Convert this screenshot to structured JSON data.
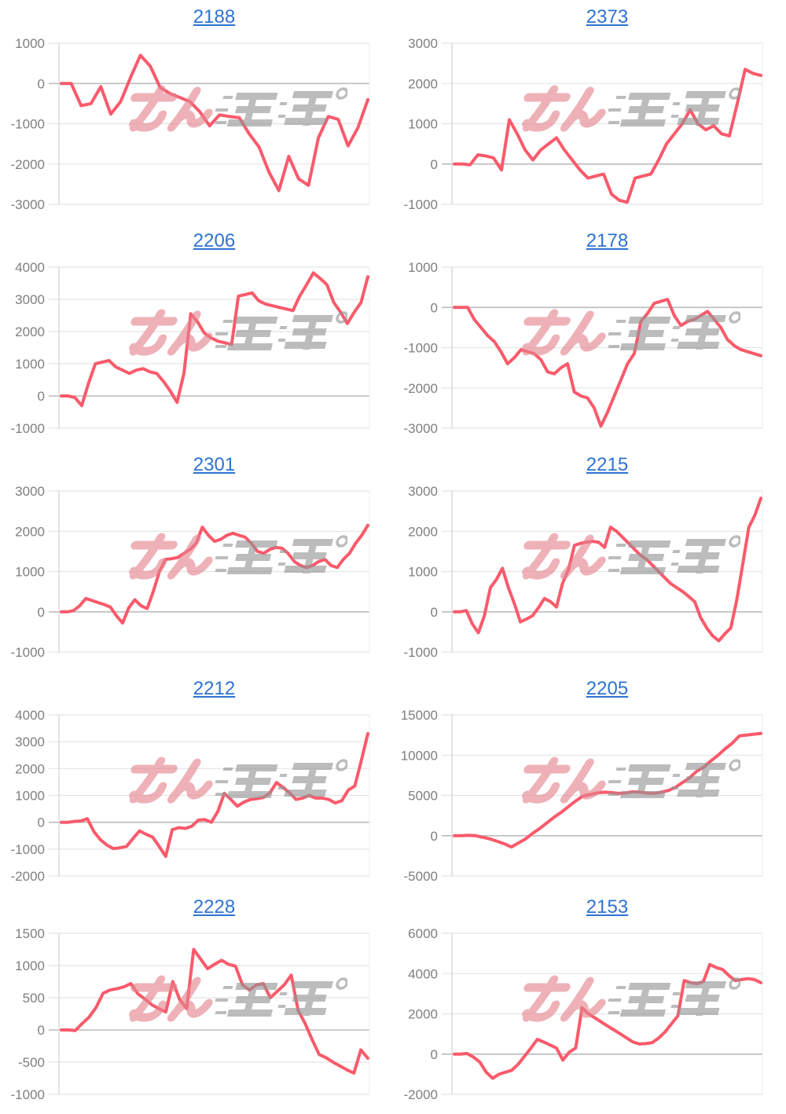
{
  "watermark": {
    "text": "みんかぶ",
    "pink_text": "みん",
    "gray_text": "かぶ",
    "pink_color": "#e4838d",
    "gray_color": "#949494"
  },
  "styles": {
    "line_color": "#fa5a6b",
    "title_color": "#2e73d2",
    "grid_color": "#e4e4e4",
    "zero_line_color": "#bcbcbc",
    "axis_color": "#d6d6d6",
    "right_edge_color": "#ececec",
    "tick_label_color": "#7f7f7f"
  },
  "chart_data": [
    {
      "type": "line",
      "title": "2188",
      "xlabel": "",
      "ylabel": "",
      "yticks": [
        1000,
        0,
        -1000,
        -2000,
        -3000
      ],
      "ylim": [
        -3000,
        1000
      ],
      "grid": true,
      "legend": "none",
      "values": [
        0,
        0,
        -550,
        -500,
        -80,
        -760,
        -450,
        150,
        700,
        430,
        -100,
        -250,
        -350,
        -450,
        -700,
        -1050,
        -780,
        -820,
        -850,
        -1250,
        -1580,
        -2200,
        -2660,
        -1810,
        -2370,
        -2530,
        -1350,
        -820,
        -890,
        -1550,
        -1100,
        -400
      ]
    },
    {
      "type": "line",
      "title": "2373",
      "xlabel": "",
      "ylabel": "",
      "yticks": [
        3000,
        2000,
        1000,
        0,
        -1000
      ],
      "ylim": [
        -1000,
        3000
      ],
      "grid": true,
      "legend": "none",
      "values": [
        0,
        0,
        -20,
        230,
        200,
        150,
        -150,
        1100,
        750,
        350,
        100,
        350,
        500,
        650,
        350,
        100,
        -150,
        -350,
        -300,
        -250,
        -750,
        -900,
        -950,
        -350,
        -300,
        -250,
        100,
        500,
        750,
        1000,
        1350,
        1000,
        850,
        950,
        750,
        700,
        1500,
        2350,
        2250,
        2200
      ]
    },
    {
      "type": "line",
      "title": "2206",
      "xlabel": "",
      "ylabel": "",
      "yticks": [
        4000,
        3000,
        2000,
        1000,
        0,
        -1000
      ],
      "ylim": [
        -1000,
        4000
      ],
      "grid": true,
      "legend": "none",
      "values": [
        0,
        0,
        -50,
        -300,
        400,
        1000,
        1050,
        1100,
        900,
        800,
        700,
        800,
        850,
        750,
        700,
        450,
        150,
        -200,
        700,
        2550,
        2300,
        1950,
        1800,
        1700,
        1650,
        1600,
        3100,
        3150,
        3200,
        2950,
        2850,
        2800,
        2750,
        2700,
        2650,
        3100,
        3450,
        3820,
        3650,
        3450,
        2900,
        2600,
        2250,
        2600,
        2900,
        3700
      ]
    },
    {
      "type": "line",
      "title": "2178",
      "xlabel": "",
      "ylabel": "",
      "yticks": [
        1000,
        0,
        -1000,
        -2000,
        -3000
      ],
      "ylim": [
        -3000,
        1000
      ],
      "grid": true,
      "legend": "none",
      "values": [
        0,
        0,
        0,
        -300,
        -500,
        -700,
        -850,
        -1100,
        -1400,
        -1250,
        -1050,
        -1100,
        -1150,
        -1300,
        -1600,
        -1650,
        -1500,
        -1400,
        -2100,
        -2200,
        -2250,
        -2500,
        -2950,
        -2600,
        -2200,
        -1800,
        -1400,
        -1150,
        -350,
        -150,
        100,
        150,
        200,
        -200,
        -450,
        -350,
        -300,
        -200,
        -100,
        -300,
        -500,
        -800,
        -950,
        -1050,
        -1100,
        -1150,
        -1200
      ]
    },
    {
      "type": "line",
      "title": "2301",
      "xlabel": "",
      "ylabel": "",
      "yticks": [
        3000,
        2000,
        1000,
        0,
        -1000
      ],
      "ylim": [
        -1000,
        3000
      ],
      "grid": true,
      "legend": "none",
      "values": [
        0,
        0,
        30,
        150,
        330,
        280,
        230,
        180,
        120,
        -100,
        -280,
        100,
        300,
        150,
        80,
        500,
        1000,
        1300,
        1320,
        1350,
        1450,
        1550,
        1700,
        2100,
        1900,
        1750,
        1800,
        1900,
        1950,
        1900,
        1850,
        1700,
        1500,
        1450,
        1550,
        1600,
        1580,
        1450,
        1250,
        1150,
        1100,
        1150,
        1250,
        1300,
        1150,
        1100,
        1300,
        1450,
        1700,
        1900,
        2150
      ]
    },
    {
      "type": "line",
      "title": "2215",
      "xlabel": "",
      "ylabel": "",
      "yticks": [
        3000,
        2000,
        1000,
        0,
        -1000
      ],
      "ylim": [
        -1000,
        3000
      ],
      "grid": true,
      "legend": "none",
      "values": [
        0,
        0,
        30,
        -300,
        -520,
        -100,
        600,
        800,
        1080,
        600,
        200,
        -250,
        -180,
        -100,
        100,
        330,
        250,
        120,
        700,
        1050,
        1650,
        1700,
        1730,
        1750,
        1730,
        1600,
        2100,
        2000,
        1850,
        1700,
        1550,
        1400,
        1300,
        1150,
        1000,
        850,
        700,
        600,
        500,
        380,
        250,
        -150,
        -400,
        -600,
        -720,
        -550,
        -400,
        300,
        1200,
        2100,
        2400,
        2820
      ]
    },
    {
      "type": "line",
      "title": "2212",
      "xlabel": "",
      "ylabel": "",
      "yticks": [
        4000,
        3000,
        2000,
        1000,
        0,
        -1000,
        -2000
      ],
      "ylim": [
        -2000,
        4000
      ],
      "grid": true,
      "legend": "none",
      "values": [
        0,
        0,
        30,
        50,
        130,
        -350,
        -650,
        -850,
        -980,
        -950,
        -900,
        -600,
        -320,
        -450,
        -550,
        -900,
        -1270,
        -280,
        -200,
        -230,
        -150,
        80,
        100,
        0,
        400,
        1080,
        850,
        600,
        750,
        850,
        880,
        920,
        1100,
        1480,
        1300,
        1100,
        850,
        900,
        1000,
        900,
        900,
        850,
        720,
        800,
        1200,
        1350,
        2300,
        3300
      ]
    },
    {
      "type": "line",
      "title": "2205",
      "xlabel": "",
      "ylabel": "",
      "yticks": [
        15000,
        10000,
        5000,
        0,
        -5000
      ],
      "ylim": [
        -5000,
        15000
      ],
      "grid": true,
      "legend": "none",
      "values": [
        0,
        0,
        50,
        0,
        -200,
        -400,
        -700,
        -1000,
        -1400,
        -900,
        -400,
        300,
        900,
        1600,
        2300,
        2900,
        3600,
        4300,
        4900,
        5100,
        5300,
        5400,
        5350,
        5250,
        5300,
        5450,
        5400,
        5300,
        5250,
        5400,
        5600,
        6000,
        6600,
        7200,
        8000,
        8500,
        9300,
        10000,
        10800,
        11500,
        12400,
        12500,
        12600,
        12700
      ]
    },
    {
      "type": "line",
      "title": "2228",
      "xlabel": "",
      "ylabel": "",
      "yticks": [
        1500,
        1000,
        500,
        0,
        -500,
        -1000
      ],
      "ylim": [
        -1000,
        1500
      ],
      "grid": true,
      "legend": "none",
      "values": [
        0,
        0,
        -10,
        100,
        200,
        350,
        570,
        620,
        640,
        670,
        720,
        560,
        480,
        390,
        330,
        280,
        750,
        470,
        330,
        1250,
        1100,
        950,
        1020,
        1080,
        1020,
        990,
        700,
        620,
        700,
        720,
        500,
        600,
        700,
        850,
        300,
        100,
        -150,
        -380,
        -430,
        -500,
        -560,
        -620,
        -670,
        -310,
        -440
      ]
    },
    {
      "type": "line",
      "title": "2153",
      "xlabel": "",
      "ylabel": "",
      "yticks": [
        6000,
        4000,
        2000,
        0,
        -2000
      ],
      "ylim": [
        -2000,
        6000
      ],
      "grid": true,
      "legend": "none",
      "values": [
        0,
        0,
        30,
        -150,
        -400,
        -900,
        -1200,
        -1000,
        -900,
        -800,
        -500,
        -100,
        300,
        730,
        600,
        450,
        300,
        -300,
        100,
        300,
        2300,
        2000,
        1800,
        1600,
        1400,
        1200,
        1000,
        800,
        600,
        500,
        520,
        570,
        800,
        1100,
        1500,
        1900,
        3650,
        3550,
        3500,
        3600,
        4450,
        4300,
        4200,
        3900,
        3650,
        3700,
        3750,
        3700,
        3550
      ]
    }
  ]
}
